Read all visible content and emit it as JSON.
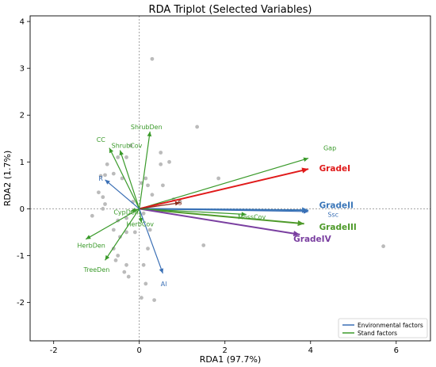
{
  "chart_data": {
    "type": "scatter",
    "title": "RDA Triplot (Selected Variables)",
    "xlabel": "RDA1 (97.7%)",
    "ylabel": "RDA2 (1.7%)",
    "xlim": [
      -2.55,
      6.8
    ],
    "ylim": [
      -2.82,
      4.12
    ],
    "xticks": [
      -2,
      0,
      2,
      4,
      6
    ],
    "yticks": [
      -2,
      -1,
      0,
      1,
      2,
      3,
      4
    ],
    "grid": false,
    "zero_lines": true,
    "legend_position": "bottom-right",
    "colors": {
      "environmental": "#3a6fb5",
      "stand": "#3a9a2a",
      "site": "#bbbbbb",
      "GradeI": "#e01a1a",
      "GradeII": "#3a76b8",
      "GradeIII": "#4e9a2a",
      "GradeIV": "#7a3fa0",
      "dark_red": "#8b2a1a"
    },
    "legend": [
      {
        "label": "Environmental factors",
        "color": "#3a6fb5"
      },
      {
        "label": "Stand factors",
        "color": "#3a9a2a"
      }
    ],
    "sites": [
      {
        "x": 0.3,
        "y": 3.2
      },
      {
        "x": 1.35,
        "y": 1.75
      },
      {
        "x": 0.5,
        "y": 1.2
      },
      {
        "x": 0.7,
        "y": 1.0
      },
      {
        "x": 0.5,
        "y": 0.95
      },
      {
        "x": 0.15,
        "y": 0.65
      },
      {
        "x": 0.2,
        "y": 0.5
      },
      {
        "x": 0.3,
        "y": 0.3
      },
      {
        "x": 0.55,
        "y": 0.5
      },
      {
        "x": 1.85,
        "y": 0.65
      },
      {
        "x": -0.2,
        "y": 1.35
      },
      {
        "x": -0.3,
        "y": 1.1
      },
      {
        "x": -0.5,
        "y": 1.1
      },
      {
        "x": -0.75,
        "y": 0.95
      },
      {
        "x": -0.6,
        "y": 0.75
      },
      {
        "x": -0.8,
        "y": 0.72
      },
      {
        "x": -0.9,
        "y": 0.7
      },
      {
        "x": -0.4,
        "y": 0.65
      },
      {
        "x": -0.95,
        "y": 0.35
      },
      {
        "x": -0.85,
        "y": 0.25
      },
      {
        "x": -0.8,
        "y": 0.1
      },
      {
        "x": -1.1,
        "y": -0.15
      },
      {
        "x": -0.85,
        "y": 0.0
      },
      {
        "x": 0.05,
        "y": 0.55
      },
      {
        "x": -0.15,
        "y": 0.15
      },
      {
        "x": 0.1,
        "y": -0.1
      },
      {
        "x": -0.3,
        "y": -0.2
      },
      {
        "x": -0.5,
        "y": -0.25
      },
      {
        "x": -0.6,
        "y": -0.45
      },
      {
        "x": -0.3,
        "y": -0.5
      },
      {
        "x": -0.1,
        "y": -0.5
      },
      {
        "x": 0.25,
        "y": -0.45
      },
      {
        "x": -0.45,
        "y": -0.6
      },
      {
        "x": -0.6,
        "y": -0.85
      },
      {
        "x": -0.5,
        "y": -1.0
      },
      {
        "x": -0.55,
        "y": -1.1
      },
      {
        "x": -0.3,
        "y": -1.2
      },
      {
        "x": 0.1,
        "y": -1.2
      },
      {
        "x": -0.35,
        "y": -1.35
      },
      {
        "x": -0.25,
        "y": -1.45
      },
      {
        "x": 0.2,
        "y": -0.85
      },
      {
        "x": 0.15,
        "y": -1.6
      },
      {
        "x": 0.05,
        "y": -1.9
      },
      {
        "x": 0.35,
        "y": -1.95
      },
      {
        "x": 1.5,
        "y": -0.78
      },
      {
        "x": 5.7,
        "y": -0.8
      },
      {
        "x": 0.8,
        "y": 0.2
      },
      {
        "x": 0.95,
        "y": 0.15
      }
    ],
    "vectors": [
      {
        "name": "Gap",
        "group": "stand",
        "x": 3.95,
        "y": 1.08,
        "label_x": 4.3,
        "label_y": 1.3
      },
      {
        "name": "GradeI",
        "group": "GradeI",
        "x": 3.95,
        "y": 0.85,
        "label_x": 4.2,
        "label_y": 0.85,
        "bold": true
      },
      {
        "name": "GradeII",
        "group": "GradeII",
        "x": 3.95,
        "y": -0.03,
        "label_x": 4.2,
        "label_y": 0.07,
        "bold": true
      },
      {
        "name": "Ssc",
        "group": "environmental",
        "x": 3.95,
        "y": -0.06,
        "label_x": 4.4,
        "label_y": -0.12
      },
      {
        "name": "GradeIII",
        "group": "GradeIII",
        "x": 3.85,
        "y": -0.32,
        "label_x": 4.2,
        "label_y": -0.4,
        "bold": true
      },
      {
        "name": "GradeIV",
        "group": "GradeIV",
        "x": 3.75,
        "y": -0.55,
        "label_x": 3.6,
        "label_y": -0.65,
        "bold": true
      },
      {
        "name": "MossCov",
        "group": "stand",
        "x": 2.5,
        "y": -0.12,
        "label_x": 2.3,
        "label_y": -0.17
      },
      {
        "name": "S",
        "group": "dark_red",
        "x": 0.95,
        "y": 0.13,
        "label_x": 0.9,
        "label_y": 0.13
      },
      {
        "name": "ShrubDen",
        "group": "stand",
        "x": 0.25,
        "y": 1.65,
        "label_x": -0.2,
        "label_y": 1.75
      },
      {
        "name": "CC",
        "group": "stand",
        "x": -0.7,
        "y": 1.3,
        "label_x": -1.0,
        "label_y": 1.48
      },
      {
        "name": "ShrubCov",
        "group": "stand",
        "x": -0.45,
        "y": 1.25,
        "label_x": -0.65,
        "label_y": 1.35
      },
      {
        "name": "R",
        "group": "environmental",
        "x": -0.8,
        "y": 0.62,
        "label_x": -0.95,
        "label_y": 0.65
      },
      {
        "name": "CypDen",
        "group": "stand",
        "x": -0.2,
        "y": -0.05,
        "label_x": -0.6,
        "label_y": -0.07
      },
      {
        "name": "HerbCov",
        "group": "stand",
        "x": 0.05,
        "y": -0.3,
        "label_x": -0.3,
        "label_y": -0.32
      },
      {
        "name": "HerbDen",
        "group": "stand",
        "x": -1.25,
        "y": -0.65,
        "label_x": -1.45,
        "label_y": -0.78
      },
      {
        "name": "TreeDen",
        "group": "stand",
        "x": -0.8,
        "y": -1.1,
        "label_x": -1.3,
        "label_y": -1.3
      },
      {
        "name": "Al",
        "group": "environmental",
        "x": 0.55,
        "y": -1.38,
        "label_x": 0.5,
        "label_y": -1.6
      }
    ]
  }
}
